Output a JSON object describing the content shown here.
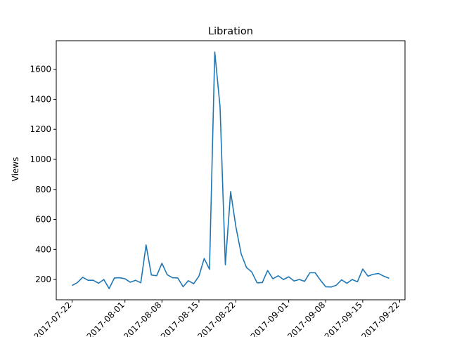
{
  "chart_data": {
    "type": "line",
    "title": "Libration",
    "xlabel": "",
    "ylabel": "Views",
    "grid": false,
    "legend": "none",
    "line_color": "#1f77b4",
    "x_start": "2017-07-22",
    "x_end": "2017-09-20",
    "xlim": [
      "2017-07-19",
      "2017-09-23"
    ],
    "ylim": [
      65,
      1790
    ],
    "x_ticks": [
      "2017-07-22",
      "2017-08-01",
      "2017-08-08",
      "2017-08-15",
      "2017-08-22",
      "2017-09-01",
      "2017-09-08",
      "2017-09-15",
      "2017-09-22"
    ],
    "y_ticks": [
      200,
      400,
      600,
      800,
      1000,
      1200,
      1400,
      1600
    ],
    "series": [
      {
        "values": [
          160,
          180,
          215,
          195,
          195,
          175,
          200,
          140,
          210,
          212,
          205,
          182,
          195,
          178,
          430,
          230,
          225,
          308,
          232,
          212,
          210,
          152,
          192,
          172,
          222,
          340,
          268,
          1715,
          1350,
          298,
          785,
          550,
          370,
          280,
          250,
          178,
          180,
          260,
          205,
          225,
          200,
          218,
          190,
          200,
          188,
          245,
          245,
          195,
          152,
          150,
          162,
          198,
          175,
          200,
          185,
          270,
          222,
          235,
          240,
          222,
          208
        ]
      }
    ]
  }
}
